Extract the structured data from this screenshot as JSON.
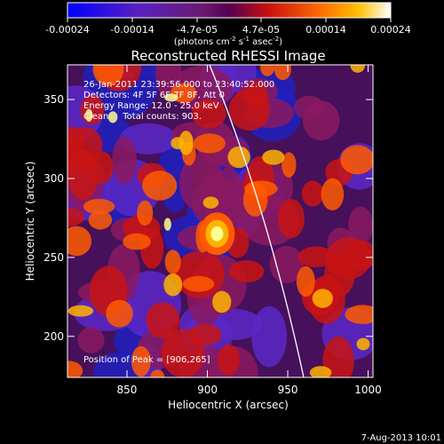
{
  "colorbar": {
    "ticks": [
      "-0.00024",
      "-0.00014",
      "-4.7e-05",
      "4.7e-05",
      "0.00014",
      "0.00024"
    ],
    "units_main": "(photons cm",
    "units_exp1": "-2",
    "units_mid1": " s",
    "units_exp2": "-1",
    "units_mid2": " asec",
    "units_exp3": "-2",
    "units_end": ")"
  },
  "chart_data": {
    "type": "heatmap",
    "title": "Reconstructed RHESSI Image",
    "xlabel": "Heliocentric X (arcsec)",
    "ylabel": "Heliocentric Y (arcsec)",
    "xlim": [
      813,
      1003
    ],
    "ylim": [
      174,
      372
    ],
    "x_ticks": [
      850,
      900,
      950,
      1000
    ],
    "y_ticks": [
      200,
      250,
      300,
      350
    ],
    "colorbar_range": [
      -0.00024,
      0.00024
    ],
    "peak_position": [
      906,
      265
    ],
    "info_lines": [
      "26-Jan-2011 23:39:56.000 to 23:40:52.000",
      "Detectors: 4F 5F 6F 7F 8F, Att 0",
      "Energy Range: 12.0 - 25.0 keV",
      "Clean     Total counts: 903."
    ],
    "peak_text": "Position of Peak = [906,265]",
    "limb_line_color": "#ffffff"
  },
  "footer": {
    "date": "7-Aug-2013 10:01"
  }
}
